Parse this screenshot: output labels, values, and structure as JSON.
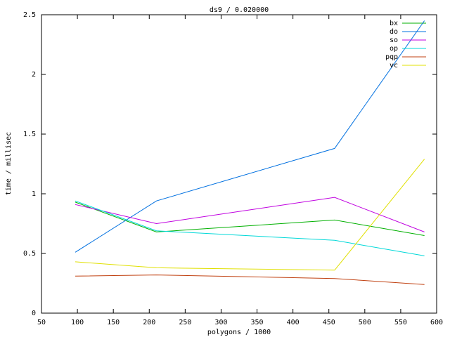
{
  "chart_data": {
    "type": "line",
    "title": "ds9 / 0.020000",
    "x_label": "polygons / 1000",
    "y_label": "time / millisec",
    "x": [
      97,
      210,
      458,
      583
    ],
    "series": [
      {
        "name": "bx",
        "color": "#00b000",
        "values": [
          0.93,
          0.68,
          0.78,
          0.65
        ]
      },
      {
        "name": "do",
        "color": "#0070e0",
        "values": [
          0.51,
          0.94,
          1.38,
          2.45
        ]
      },
      {
        "name": "so",
        "color": "#c000e0",
        "values": [
          0.91,
          0.75,
          0.97,
          0.68
        ]
      },
      {
        "name": "op",
        "color": "#00d8d8",
        "values": [
          0.94,
          0.69,
          0.61,
          0.48
        ]
      },
      {
        "name": "pqp",
        "color": "#c04010",
        "values": [
          0.31,
          0.32,
          0.29,
          0.24
        ]
      },
      {
        "name": "vc",
        "color": "#e0e000",
        "values": [
          0.43,
          0.38,
          0.36,
          1.29
        ]
      }
    ],
    "xlim": [
      50,
      600
    ],
    "xticks": [
      50,
      100,
      150,
      200,
      250,
      300,
      350,
      400,
      450,
      500,
      550,
      600
    ],
    "ylim": [
      0,
      2.5
    ],
    "yticks": [
      0,
      0.5,
      1,
      1.5,
      2,
      2.5
    ],
    "grid": false,
    "legend": "top-right"
  }
}
